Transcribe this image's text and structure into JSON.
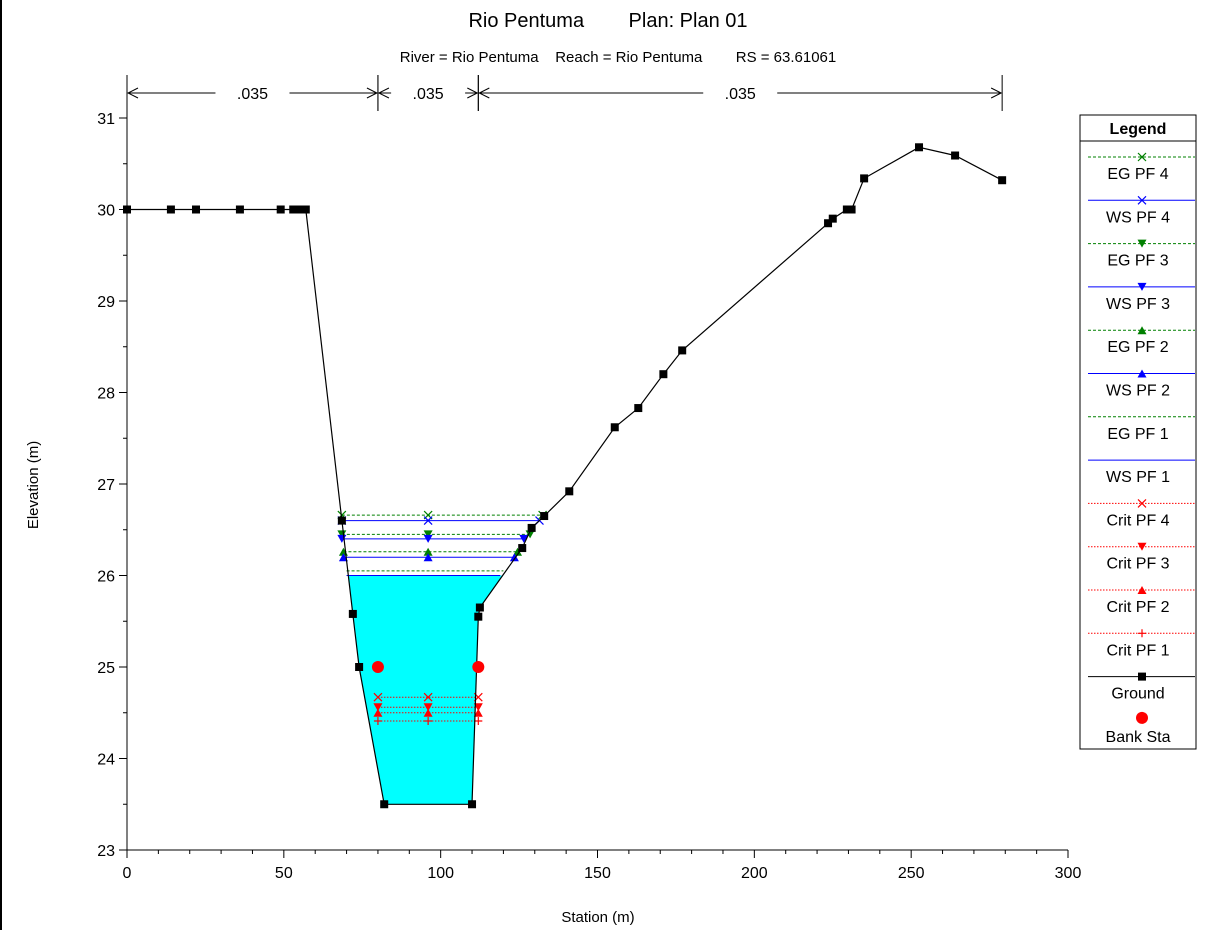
{
  "chart_data": {
    "type": "line",
    "title": "Rio Pentuma        Plan: Plan 01",
    "subtitle": "River = Rio Pentuma    Reach = Rio Pentuma        RS = 63.61061",
    "xlabel": "Station (m)",
    "ylabel": "Elevation (m)",
    "xlim": [
      0,
      300
    ],
    "ylim": [
      23,
      31.4
    ],
    "xticks": [
      "0",
      "50",
      "100",
      "150",
      "200",
      "250",
      "300"
    ],
    "yticks": [
      "23",
      "24",
      "25",
      "26",
      "27",
      "28",
      "29",
      "30",
      "31"
    ],
    "grid": false,
    "legend_position": "right",
    "legend_title": "Legend",
    "manning": [
      {
        "from": 0,
        "to": 80,
        "label": ".035"
      },
      {
        "from": 80,
        "to": 112,
        "label": ".035"
      },
      {
        "from": 112,
        "to": 279,
        "label": ".035"
      }
    ],
    "ground": {
      "name": "Ground",
      "x": [
        0,
        14,
        22,
        36,
        49,
        53,
        55,
        57,
        68.5,
        72,
        74,
        82,
        110,
        112,
        112.5,
        126,
        129,
        133,
        141,
        155.5,
        163,
        171,
        177,
        223.5,
        225,
        229.5,
        231,
        235,
        252.5,
        264,
        279
      ],
      "y": [
        30,
        30,
        30,
        30,
        30,
        30,
        30,
        30,
        26.6,
        25.58,
        25,
        23.5,
        23.5,
        25.55,
        25.65,
        26.3,
        26.52,
        26.65,
        26.92,
        27.62,
        27.83,
        28.2,
        28.46,
        29.85,
        29.9,
        30,
        30,
        30.34,
        30.68,
        30.59,
        30.32
      ]
    },
    "bank_stations": {
      "name": "Bank Sta",
      "x": [
        80,
        112
      ],
      "y": [
        25,
        25
      ]
    },
    "water_surface_fill": {
      "elevation": 26.0,
      "color": "#00ffff"
    },
    "profiles": [
      {
        "name": "EG PF 4",
        "type": "EG",
        "elevation": 26.66,
        "x0": 68.5,
        "x1": 132.5,
        "marker": "x",
        "color": "#008000"
      },
      {
        "name": "WS PF 4",
        "type": "WS",
        "elevation": 26.6,
        "x0": 68.5,
        "x1": 131.5,
        "marker": "x",
        "color": "#0000ff"
      },
      {
        "name": "EG PF 3",
        "type": "EG",
        "elevation": 26.45,
        "x0": 68.5,
        "x1": 128.5,
        "marker": "tri-down",
        "color": "#008000"
      },
      {
        "name": "WS PF 3",
        "type": "WS",
        "elevation": 26.4,
        "x0": 68.5,
        "x1": 126.5,
        "marker": "tri-down",
        "color": "#0000ff"
      },
      {
        "name": "EG PF 2",
        "type": "EG",
        "elevation": 26.26,
        "x0": 69,
        "x1": 124.5,
        "marker": "tri-up",
        "color": "#008000"
      },
      {
        "name": "WS PF 2",
        "type": "WS",
        "elevation": 26.2,
        "x0": 69,
        "x1": 123.5,
        "marker": "tri-up",
        "color": "#0000ff"
      },
      {
        "name": "EG PF 1",
        "type": "EG",
        "elevation": 26.05,
        "x0": 70,
        "x1": 120,
        "marker": "none",
        "color": "#008000"
      },
      {
        "name": "WS PF 1",
        "type": "WS",
        "elevation": 26.0,
        "x0": 70,
        "x1": 119,
        "marker": "none",
        "color": "#0000ff"
      },
      {
        "name": "Crit PF 4",
        "type": "Crit",
        "elevation": 24.67,
        "x0": 80,
        "x1": 112,
        "marker": "x",
        "color": "#ff0000"
      },
      {
        "name": "Crit PF 3",
        "type": "Crit",
        "elevation": 24.56,
        "x0": 80,
        "x1": 112,
        "marker": "tri-down",
        "color": "#ff0000"
      },
      {
        "name": "Crit PF 2",
        "type": "Crit",
        "elevation": 24.5,
        "x0": 80,
        "x1": 112,
        "marker": "tri-up",
        "color": "#ff0000"
      },
      {
        "name": "Crit PF 1",
        "type": "Crit",
        "elevation": 24.41,
        "x0": 80,
        "x1": 112,
        "marker": "plus",
        "color": "#ff0000"
      }
    ]
  }
}
